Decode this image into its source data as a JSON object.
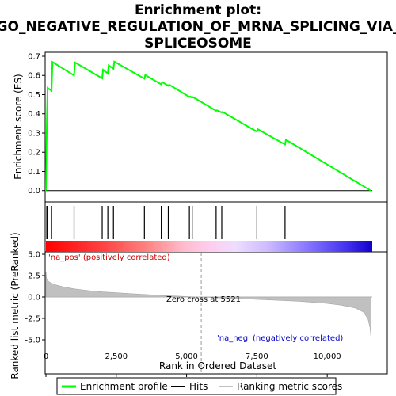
{
  "chart_data": {
    "type": "line",
    "title_lines": [
      "Enrichment plot:",
      "GO_NEGATIVE_REGULATION_OF_MRNA_SPLICING_VIA_",
      "SPLICEOSOME"
    ],
    "xlabel": "Rank in Ordered Dataset",
    "xlim": [
      0,
      11600
    ],
    "x_ticks": [
      0,
      2500,
      5000,
      7500,
      10000
    ],
    "x_tick_labels": [
      "0",
      "2,500",
      "5,000",
      "7,500",
      "10,000"
    ],
    "es_panel": {
      "ylabel": "Enrichment score (ES)",
      "ylim": [
        -0.03,
        0.7
      ],
      "y_ticks": [
        0.0,
        0.1,
        0.2,
        0.3,
        0.4,
        0.5,
        0.6,
        0.7
      ],
      "y_tick_labels": [
        "0.0",
        "0.1",
        "0.2",
        "0.3",
        "0.4",
        "0.5",
        "0.6",
        "0.7"
      ],
      "series_name": "Enrichment profile",
      "color": "#00ff00",
      "x": [
        0,
        30,
        60,
        200,
        230,
        1000,
        1030,
        2000,
        2030,
        2200,
        2230,
        2400,
        2430,
        3500,
        3530,
        4100,
        4130,
        4350,
        4380,
        5100,
        5130,
        5200,
        5230,
        6050,
        6080,
        6250,
        6280,
        7500,
        7530,
        8500,
        8530,
        11550
      ],
      "y": [
        0.0,
        0.34,
        0.535,
        0.52,
        0.67,
        0.6,
        0.668,
        0.585,
        0.63,
        0.61,
        0.652,
        0.635,
        0.672,
        0.583,
        0.602,
        0.553,
        0.565,
        0.546,
        0.552,
        0.488,
        0.49,
        0.484,
        0.487,
        0.416,
        0.418,
        0.407,
        0.41,
        0.307,
        0.32,
        0.24,
        0.265,
        0.0
      ]
    },
    "hits": [
      30,
      60,
      200,
      1000,
      2000,
      2200,
      2400,
      3500,
      4100,
      4350,
      5100,
      5200,
      6050,
      6250,
      7500,
      8500
    ],
    "hits_name": "Hits",
    "metric_panel": {
      "ylabel_lines": [
        "Ranked list metric (PreRanked)"
      ],
      "ylim": [
        -5.3,
        5.3
      ],
      "y_ticks": [
        -5.0,
        -2.5,
        0.0,
        2.5,
        5.0
      ],
      "y_tick_labels": [
        "-5.0",
        "-2.5",
        "0.0",
        "2.5",
        "5.0"
      ],
      "series_name": "Ranking metric scores",
      "fill_color": "#c0c0c0",
      "x": [
        0,
        20,
        100,
        300,
        600,
        1000,
        1500,
        2000,
        3000,
        4000,
        5000,
        5521,
        6000,
        7000,
        8000,
        9000,
        10000,
        10500,
        11000,
        11300,
        11450,
        11520,
        11560
      ],
      "y": [
        2.9,
        2.2,
        1.8,
        1.45,
        1.2,
        0.95,
        0.75,
        0.6,
        0.4,
        0.2,
        0.06,
        0.0,
        -0.08,
        -0.2,
        -0.35,
        -0.5,
        -0.75,
        -0.95,
        -1.3,
        -1.8,
        -2.6,
        -3.6,
        -5.0
      ],
      "zero_cross_label": "Zero cross at 5521",
      "zero_cross": 5521,
      "pos_label": "'na_pos' (positively correlated)",
      "neg_label": "'na_neg' (negatively correlated)",
      "pos_color": "#cc0000",
      "neg_color": "#0000cc"
    },
    "legend": {
      "placement": "bottom",
      "items": [
        "Enrichment profile",
        "Hits",
        "Ranking metric scores"
      ]
    }
  }
}
